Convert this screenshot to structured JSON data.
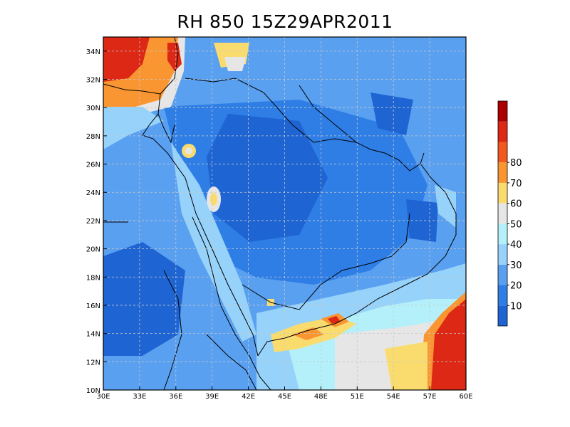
{
  "title": "RH 850  15Z29APR2011",
  "map": {
    "lon_ticks": [
      "30E",
      "33E",
      "36E",
      "39E",
      "42E",
      "45E",
      "48E",
      "51E",
      "54E",
      "57E",
      "60E"
    ],
    "lat_ticks": [
      "10N",
      "12N",
      "14N",
      "16N",
      "18N",
      "20N",
      "22N",
      "24N",
      "26N",
      "28N",
      "30N",
      "32N",
      "34N"
    ],
    "lon_range": [
      30,
      60
    ],
    "lat_range": [
      10,
      35
    ],
    "grid": "dashed"
  },
  "colorbar": {
    "labels": [
      "10",
      "20",
      "30",
      "40",
      "50",
      "60",
      "70",
      "80"
    ],
    "colors": [
      "#1e64d2",
      "#2e7ee6",
      "#5aa0f0",
      "#96d2fa",
      "#b4f0fa",
      "#e6e6e6",
      "#fadc6e",
      "#fa9632",
      "#f05a1e",
      "#dc2814",
      "#aa0000"
    ]
  }
}
